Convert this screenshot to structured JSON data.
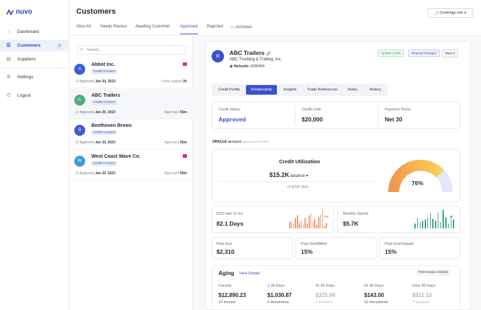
{
  "app": {
    "logo_text": "nuvo"
  },
  "sidebar": {
    "items": [
      {
        "label": "Dashboard",
        "icon": "circle-icon"
      },
      {
        "label": "Customers",
        "icon": "users-icon",
        "count": "3"
      },
      {
        "label": "Suppliers",
        "icon": "suppliers-icon"
      },
      {
        "label": "Settings",
        "icon": "gear-icon"
      },
      {
        "label": "Logout",
        "icon": "logout-icon"
      }
    ]
  },
  "header": {
    "title": "Customers",
    "credit_app_link": "Credit App Link"
  },
  "tabs": [
    "View All",
    "Needs Review",
    "Awaiting Customer",
    "Approved",
    "Rejected",
    "Archived"
  ],
  "search": {
    "placeholder": "Search..."
  },
  "customers": [
    {
      "initial": "A",
      "name": "Abbot Inc.",
      "badge": "Credit Account",
      "approved_label": "Approved",
      "date": "Jan 20, 2023",
      "right_prefix": "• New Update",
      "right_value": "2h",
      "flag": true,
      "color": "#3d5bd9"
    },
    {
      "initial": "A",
      "name": "ABC Trailers",
      "badge": "Credit Account",
      "approved_label": "Approved",
      "date": "Jan 20, 2023",
      "right_prefix": "Approved",
      "right_value": "55m",
      "flag": false,
      "color": "#4caf7d"
    },
    {
      "initial": "B",
      "name": "Beethoven Brews",
      "badge": "Credit Account",
      "approved_label": "Approved",
      "date": "Jan 20, 2023",
      "right_prefix": "Approved",
      "right_value": "55m",
      "flag": false,
      "color": "#3d5bd9"
    },
    {
      "initial": "W",
      "name": "West Coast Wave Co.",
      "badge": "Credit Account",
      "approved_label": "Approved",
      "date": "Jan 20, 2023",
      "right_prefix": "Approved",
      "right_value": "55m",
      "flag": true,
      "color": "#3d9dd9"
    }
  ],
  "detail": {
    "initial": "R",
    "name": "ABC Trailers",
    "legal_name": "ABC Trucking & Trailing, Inc.",
    "netsuite_label": "Netsuite",
    "netsuite_id": "1036409",
    "actions": {
      "update": "Update Credit",
      "request": "Request Changes",
      "more": "More"
    },
    "tabs": [
      "Credit Profile",
      "Relationship",
      "Insights",
      "Trade References",
      "Notes",
      "History"
    ],
    "active_tab": "Relationship",
    "credit_status": {
      "label": "Credit Status",
      "value": "Approved"
    },
    "credit_limit": {
      "label": "Credit Limit",
      "value": "$20,000"
    },
    "payment_terms": {
      "label": "Payment Terms",
      "value": "Net 30"
    },
    "oracle": {
      "brand": "ORACLE",
      "product": "NETSUITE",
      "synced": "Synced 1/2/23 2:46 PST"
    },
    "utilization": {
      "title": "Credit Utilization",
      "balance": "$15.2K",
      "balance_label": "balance",
      "limit_text": "of $20K limit",
      "percent": "76%",
      "percent_value": 76
    },
    "dso": {
      "label": "DSO last 12 mo",
      "value": "82.1 Days",
      "marker": "82d",
      "bars": [
        6,
        5,
        4,
        9,
        11,
        5,
        7,
        3,
        9,
        4,
        11,
        13,
        6,
        8,
        3,
        10,
        12,
        16,
        2,
        5
      ]
    },
    "spend": {
      "label": "Monthly Spend",
      "value": "$5.7K",
      "marker": "5K",
      "bars": [
        4,
        9,
        5,
        6,
        7,
        9,
        12,
        8,
        6,
        13,
        5,
        15,
        9,
        4,
        10,
        7
      ]
    },
    "past_due": {
      "label": "Past Due",
      "value": "$2,310"
    },
    "past_due_billed": {
      "label": "Past Due/Billed",
      "value": "15%"
    },
    "past_due_unpaid": {
      "label": "Past Due/Unpaid",
      "value": "15%"
    },
    "aging": {
      "title": "Aging",
      "link": "View Details",
      "first_invoice": "First Invoice 1/23/16",
      "columns": [
        {
          "label": "Current",
          "amount": "$12,890.23",
          "count": "10 invoice",
          "muted": false
        },
        {
          "label": "1-30 Days",
          "amount": "$1,030.87",
          "count": "2 documents",
          "muted": false
        },
        {
          "label": "31-60 Days",
          "amount": "$325.00",
          "count": "1 invoices",
          "muted": true
        },
        {
          "label": "61-90 Days",
          "amount": "$143.00",
          "count": "12 documents",
          "muted": false
        },
        {
          "label": "Over 90 Days",
          "amount": "$811.13",
          "count": "2 invoices",
          "muted": true
        }
      ]
    }
  }
}
